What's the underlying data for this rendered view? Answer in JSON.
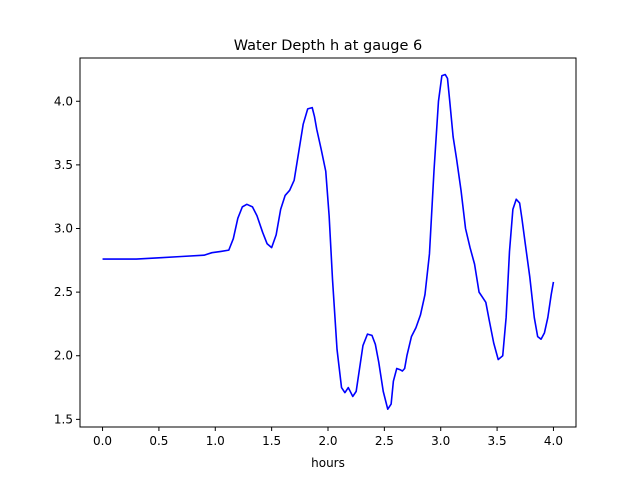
{
  "chart_data": {
    "type": "line",
    "title": "Water Depth h at gauge 6",
    "xlabel": "hours",
    "ylabel": "",
    "xlim": [
      -0.2,
      4.2
    ],
    "ylim": [
      1.44,
      4.34
    ],
    "xticks": [
      0.0,
      0.5,
      1.0,
      1.5,
      2.0,
      2.5,
      3.0,
      3.5,
      4.0
    ],
    "xtick_labels": [
      "0.0",
      "0.5",
      "1.0",
      "1.5",
      "2.0",
      "2.5",
      "3.0",
      "3.5",
      "4.0"
    ],
    "yticks": [
      1.5,
      2.0,
      2.5,
      3.0,
      3.5,
      4.0
    ],
    "ytick_labels": [
      "1.5",
      "2.0",
      "2.5",
      "3.0",
      "3.5",
      "4.0"
    ],
    "grid": false,
    "series": [
      {
        "color": "#0000ff",
        "x": [
          0.0,
          0.3,
          0.5,
          0.7,
          0.9,
          0.97,
          1.05,
          1.12,
          1.16,
          1.2,
          1.24,
          1.28,
          1.33,
          1.37,
          1.42,
          1.46,
          1.5,
          1.54,
          1.58,
          1.62,
          1.66,
          1.7,
          1.74,
          1.78,
          1.82,
          1.86,
          1.88,
          1.9,
          1.94,
          1.98,
          2.01,
          2.04,
          2.08,
          2.12,
          2.15,
          2.18,
          2.22,
          2.25,
          2.28,
          2.31,
          2.35,
          2.39,
          2.42,
          2.45,
          2.49,
          2.53,
          2.56,
          2.58,
          2.61,
          2.64,
          2.66,
          2.68,
          2.7,
          2.74,
          2.78,
          2.82,
          2.86,
          2.9,
          2.94,
          2.98,
          3.01,
          3.04,
          3.06,
          3.08,
          3.11,
          3.14,
          3.18,
          3.22,
          3.26,
          3.3,
          3.34,
          3.37,
          3.4,
          3.43,
          3.47,
          3.51,
          3.55,
          3.58,
          3.61,
          3.64,
          3.67,
          3.7,
          3.72,
          3.75,
          3.79,
          3.83,
          3.86,
          3.89,
          3.92,
          3.95,
          3.98,
          4.0
        ],
        "y": [
          2.76,
          2.76,
          2.77,
          2.78,
          2.79,
          2.81,
          2.82,
          2.83,
          2.92,
          3.08,
          3.17,
          3.19,
          3.17,
          3.1,
          2.97,
          2.88,
          2.85,
          2.95,
          3.15,
          3.26,
          3.3,
          3.38,
          3.6,
          3.82,
          3.94,
          3.95,
          3.88,
          3.78,
          3.62,
          3.45,
          3.1,
          2.6,
          2.05,
          1.75,
          1.71,
          1.75,
          1.68,
          1.72,
          1.9,
          2.08,
          2.17,
          2.16,
          2.09,
          1.95,
          1.72,
          1.58,
          1.62,
          1.8,
          1.9,
          1.89,
          1.88,
          1.9,
          2.0,
          2.15,
          2.22,
          2.32,
          2.48,
          2.8,
          3.45,
          4.0,
          4.2,
          4.21,
          4.18,
          4.0,
          3.72,
          3.55,
          3.3,
          3.0,
          2.85,
          2.72,
          2.5,
          2.46,
          2.42,
          2.28,
          2.1,
          1.97,
          2.0,
          2.3,
          2.82,
          3.15,
          3.23,
          3.2,
          3.08,
          2.88,
          2.62,
          2.3,
          2.15,
          2.13,
          2.18,
          2.3,
          2.48,
          2.58
        ]
      }
    ]
  }
}
